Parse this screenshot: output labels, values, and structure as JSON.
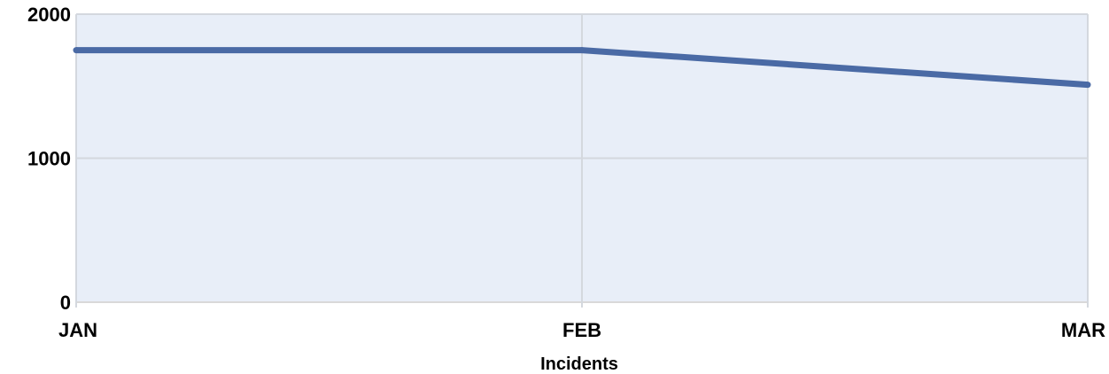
{
  "chart_data": {
    "type": "line",
    "categories": [
      "JAN",
      "FEB",
      "MAR"
    ],
    "series": [
      {
        "values": [
          1750,
          1750,
          1510
        ]
      }
    ],
    "xlabel": "Incidents",
    "ylabel": "",
    "title": "",
    "ylim": [
      0,
      2000
    ],
    "yticks": [
      0,
      1000,
      2000
    ],
    "ytick_labels": [
      "0",
      "1000",
      "2000"
    ],
    "grid": true,
    "legend": "none"
  },
  "colors": {
    "plot_background": "#e8eef8",
    "series_line": "#4a6aa5",
    "gridline": "#d4d8de",
    "axis_line": "#d9d9d9"
  }
}
